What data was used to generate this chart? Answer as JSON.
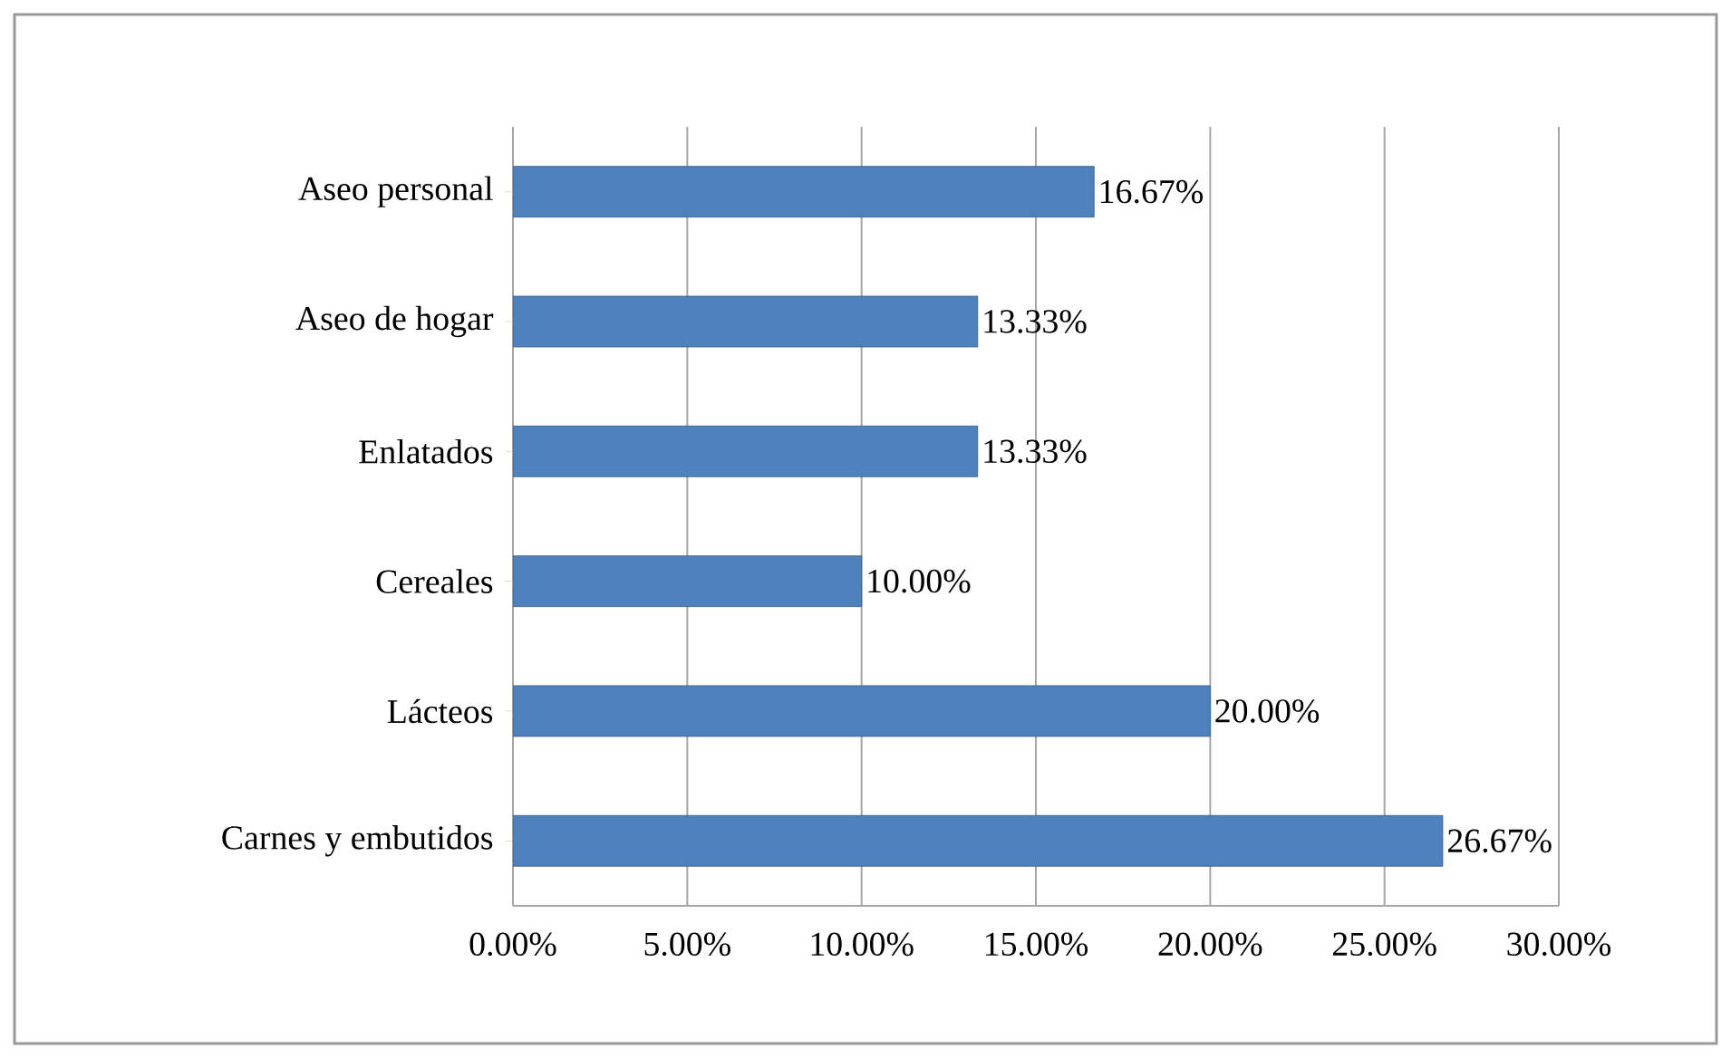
{
  "chart_data": {
    "type": "bar",
    "orientation": "horizontal",
    "categories": [
      "Aseo personal",
      "Aseo de hogar",
      "Enlatados",
      "Cereales",
      "Lácteos",
      "Carnes y embutidos"
    ],
    "values": [
      16.67,
      13.33,
      13.33,
      10.0,
      20.0,
      26.67
    ],
    "value_labels": [
      "16.67%",
      "13.33%",
      "13.33%",
      "10.00%",
      "20.00%",
      "26.67%"
    ],
    "color": "#4f81bd",
    "xlim": [
      0,
      30
    ],
    "xticks": [
      {
        "value": 0,
        "label": "0.00%"
      },
      {
        "value": 5,
        "label": "5.00%"
      },
      {
        "value": 10,
        "label": "10.00%"
      },
      {
        "value": 15,
        "label": "15.00%"
      },
      {
        "value": 20,
        "label": "20.00%"
      },
      {
        "value": 25,
        "label": "25.00%"
      },
      {
        "value": 30,
        "label": "30.00%"
      }
    ],
    "grid": "x"
  }
}
